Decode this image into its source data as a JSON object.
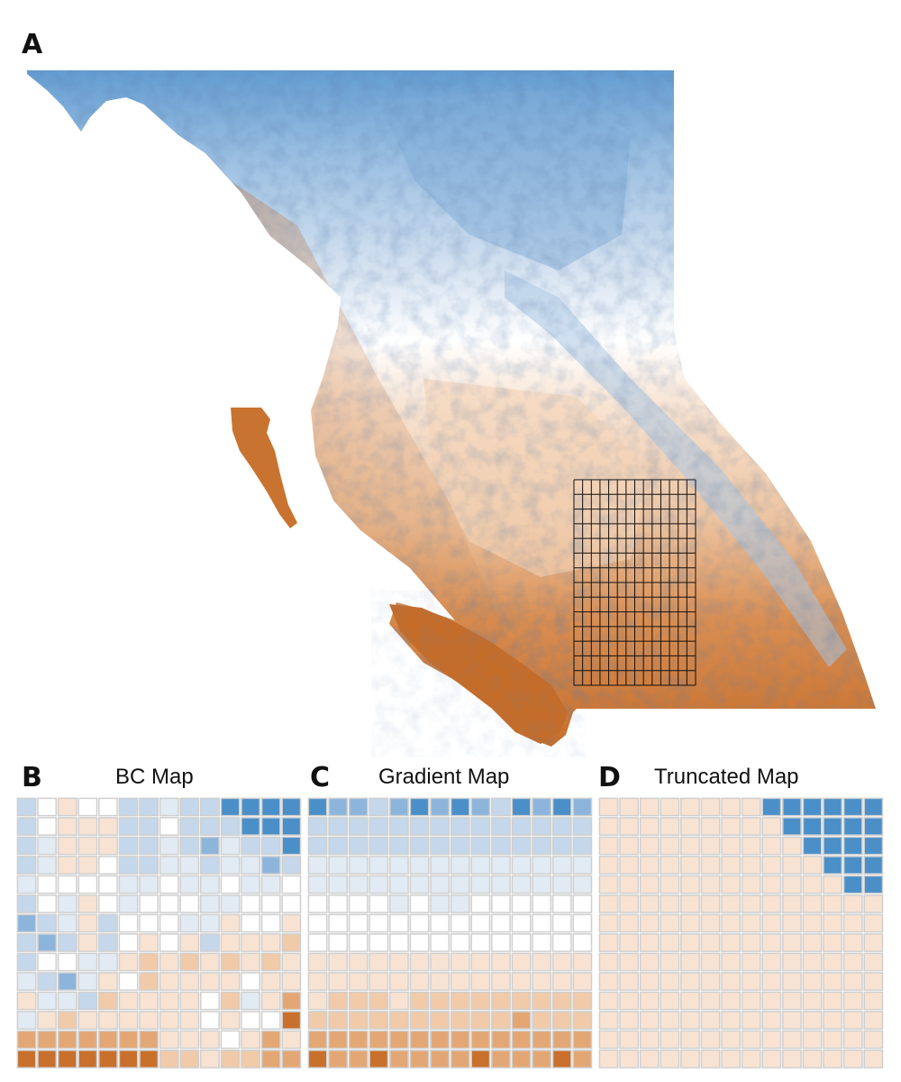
{
  "panels": {
    "a": {
      "letter": "A"
    },
    "b": {
      "letter": "B",
      "title": "BC Map"
    },
    "c": {
      "letter": "C",
      "title": "Gradient Map"
    },
    "d": {
      "letter": "D",
      "title": "Truncated Map"
    }
  },
  "colors": {
    "blue_dark": "#4a8fc8",
    "blue_mid": "#8db5dc",
    "blue_light": "#c5d7ea",
    "blue_pale": "#e2ebf4",
    "white": "#ffffff",
    "orange_pale": "#f8e3d3",
    "orange_light": "#f0caa9",
    "orange_mid": "#e3a775",
    "orange_dark": "#c8702c",
    "grid_line": "#111111"
  },
  "legend_scale": [
    -4,
    -3,
    -2,
    -1,
    0,
    1,
    2,
    3,
    4
  ],
  "grid_overlay": {
    "rows": 14,
    "cols": 14
  },
  "chart_data": [
    {
      "type": "heatmap",
      "title": "BC Map",
      "rows": 14,
      "cols": 14,
      "values": [
        [
          -2,
          0,
          1,
          0,
          0,
          -2,
          -2,
          -1,
          -2,
          -2,
          -4,
          -4,
          -4,
          -4
        ],
        [
          -2,
          0,
          1,
          1,
          1,
          -2,
          -2,
          0,
          -2,
          -2,
          -2,
          -4,
          -4,
          -4
        ],
        [
          -2,
          -1,
          1,
          1,
          1,
          -2,
          -2,
          -1,
          -2,
          -3,
          -1,
          -2,
          -2,
          -4
        ],
        [
          -2,
          -1,
          1,
          1,
          0,
          -2,
          -2,
          -1,
          -1,
          -2,
          -1,
          -1,
          -3,
          -2
        ],
        [
          -1,
          0,
          0,
          0,
          0,
          -1,
          -1,
          0,
          -1,
          -1,
          0,
          -1,
          -1,
          0
        ],
        [
          -2,
          0,
          -1,
          1,
          0,
          -1,
          0,
          0,
          0,
          -1,
          -1,
          0,
          0,
          0
        ],
        [
          -3,
          -2,
          -1,
          1,
          -2,
          0,
          0,
          0,
          -1,
          -1,
          1,
          0,
          0,
          1
        ],
        [
          -2,
          -3,
          -2,
          1,
          -2,
          0,
          1,
          0,
          1,
          -2,
          1,
          1,
          1,
          2
        ],
        [
          -2,
          0,
          0,
          -1,
          -1,
          1,
          2,
          1,
          2,
          1,
          2,
          1,
          2,
          1
        ],
        [
          -1,
          -2,
          -3,
          -1,
          1,
          0,
          2,
          1,
          1,
          1,
          1,
          0,
          1,
          1
        ],
        [
          1,
          -1,
          -1,
          -2,
          2,
          1,
          1,
          1,
          1,
          0,
          2,
          -1,
          1,
          3
        ],
        [
          -1,
          1,
          2,
          1,
          1,
          1,
          1,
          1,
          1,
          0,
          1,
          0,
          0,
          4
        ],
        [
          3,
          3,
          3,
          3,
          3,
          3,
          3,
          1,
          1,
          1,
          0,
          1,
          3,
          1
        ],
        [
          4,
          4,
          4,
          4,
          4,
          4,
          4,
          2,
          2,
          1,
          2,
          2,
          3,
          3
        ]
      ]
    },
    {
      "type": "heatmap",
      "title": "Gradient Map",
      "rows": 14,
      "cols": 14,
      "values": [
        [
          -4,
          -3,
          -3,
          -2,
          -3,
          -4,
          -3,
          -4,
          -3,
          -2,
          -4,
          -3,
          -4,
          -3
        ],
        [
          -2,
          -2,
          -2,
          -2,
          -2,
          -2,
          -2,
          -2,
          -2,
          -2,
          -2,
          -2,
          -2,
          -2
        ],
        [
          -2,
          -2,
          -2,
          -2,
          -2,
          -2,
          -2,
          -2,
          -2,
          -2,
          -2,
          -2,
          -2,
          -2
        ],
        [
          -1,
          -1,
          -1,
          -1,
          -1,
          -1,
          -1,
          -1,
          -1,
          -1,
          -1,
          -1,
          -1,
          -1
        ],
        [
          -1,
          -1,
          -1,
          -1,
          -1,
          -1,
          -1,
          -1,
          -1,
          -1,
          -1,
          -1,
          -1,
          -1
        ],
        [
          0,
          0,
          0,
          0,
          -1,
          0,
          -1,
          -1,
          0,
          0,
          0,
          0,
          0,
          0
        ],
        [
          0,
          0,
          0,
          0,
          0,
          0,
          0,
          0,
          0,
          0,
          0,
          0,
          0,
          0
        ],
        [
          0,
          0,
          0,
          0,
          0,
          0,
          0,
          0,
          0,
          0,
          0,
          0,
          0,
          0
        ],
        [
          1,
          1,
          1,
          1,
          1,
          1,
          1,
          1,
          1,
          1,
          1,
          1,
          1,
          1
        ],
        [
          1,
          1,
          1,
          1,
          1,
          1,
          1,
          1,
          1,
          1,
          1,
          1,
          1,
          1
        ],
        [
          1,
          2,
          2,
          2,
          1,
          2,
          2,
          2,
          2,
          2,
          2,
          2,
          2,
          2
        ],
        [
          2,
          2,
          2,
          2,
          2,
          2,
          2,
          2,
          2,
          2,
          3,
          2,
          2,
          2
        ],
        [
          3,
          3,
          3,
          3,
          3,
          3,
          3,
          3,
          3,
          3,
          3,
          3,
          3,
          3
        ],
        [
          4,
          3,
          3,
          4,
          3,
          3,
          3,
          3,
          4,
          3,
          3,
          3,
          4,
          3
        ]
      ]
    },
    {
      "type": "heatmap",
      "title": "Truncated Map",
      "rows": 14,
      "cols": 14,
      "values": [
        [
          1,
          1,
          1,
          1,
          1,
          1,
          1,
          1,
          -4,
          -4,
          -4,
          -4,
          -4,
          -4
        ],
        [
          1,
          1,
          1,
          1,
          1,
          1,
          1,
          1,
          1,
          -4,
          -4,
          -4,
          -4,
          -4
        ],
        [
          1,
          1,
          1,
          1,
          1,
          1,
          1,
          1,
          1,
          1,
          -4,
          -4,
          -4,
          -4
        ],
        [
          1,
          1,
          1,
          1,
          1,
          1,
          1,
          1,
          1,
          1,
          1,
          -4,
          -4,
          -4
        ],
        [
          1,
          1,
          1,
          1,
          1,
          1,
          1,
          1,
          1,
          1,
          1,
          1,
          -4,
          -4
        ],
        [
          1,
          1,
          1,
          1,
          1,
          1,
          1,
          1,
          1,
          1,
          1,
          1,
          1,
          1
        ],
        [
          1,
          1,
          1,
          1,
          1,
          1,
          1,
          1,
          1,
          1,
          1,
          1,
          1,
          1
        ],
        [
          1,
          1,
          1,
          1,
          1,
          1,
          1,
          1,
          1,
          1,
          1,
          1,
          1,
          1
        ],
        [
          1,
          1,
          1,
          1,
          1,
          1,
          1,
          1,
          1,
          1,
          1,
          1,
          1,
          1
        ],
        [
          1,
          1,
          1,
          1,
          1,
          1,
          1,
          1,
          1,
          1,
          1,
          1,
          1,
          1
        ],
        [
          1,
          1,
          1,
          1,
          1,
          1,
          1,
          1,
          1,
          1,
          1,
          1,
          1,
          1
        ],
        [
          1,
          1,
          1,
          1,
          1,
          1,
          1,
          1,
          1,
          1,
          1,
          1,
          1,
          1
        ],
        [
          1,
          1,
          1,
          1,
          1,
          1,
          1,
          1,
          1,
          1,
          1,
          1,
          1,
          1
        ],
        [
          1,
          1,
          1,
          1,
          1,
          1,
          1,
          1,
          1,
          1,
          1,
          1,
          1,
          1
        ]
      ]
    }
  ]
}
